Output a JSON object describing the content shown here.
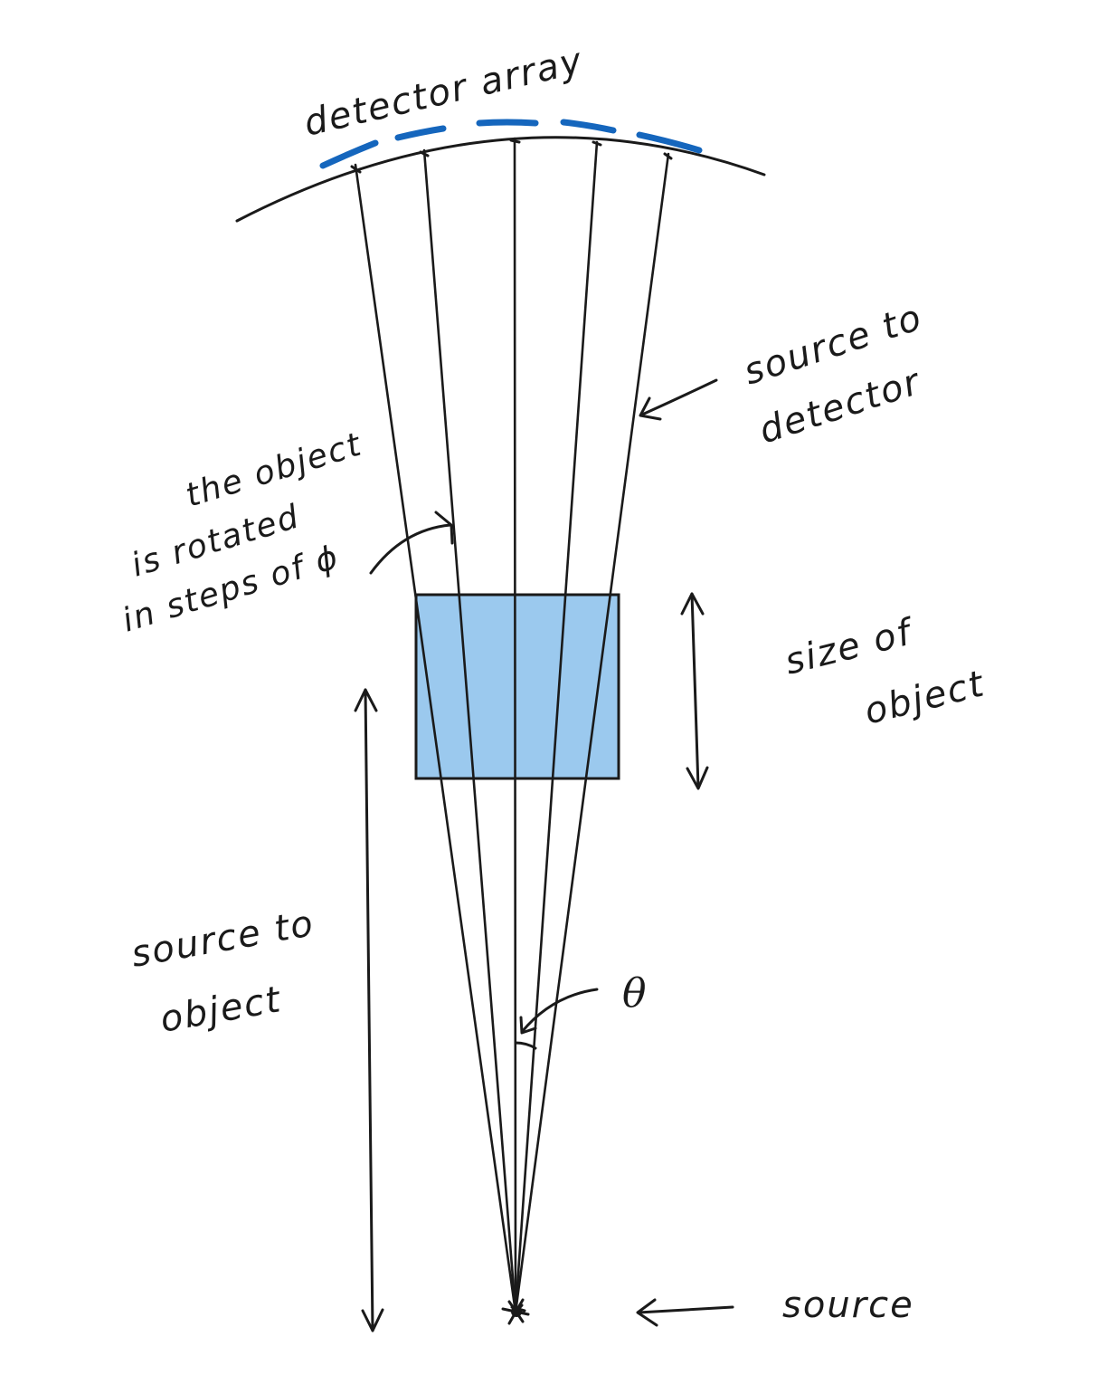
{
  "labels": {
    "detector_array": "detector array",
    "source_to_detector_line1": "source to",
    "source_to_detector_line2": "detector",
    "rotation_line1": "the object",
    "rotation_line2": "is rotated",
    "rotation_line3": "in steps of ϕ",
    "size_of_object_line1": "size of",
    "size_of_object_line2": "object",
    "source_to_object_line1": "source to",
    "source_to_object_line2": "object",
    "theta": "θ",
    "source": "source"
  },
  "colors": {
    "ink": "#1a1a1a",
    "detector": "#1566bd",
    "object_fill": "#9bc9ee",
    "background": "#ffffff"
  }
}
